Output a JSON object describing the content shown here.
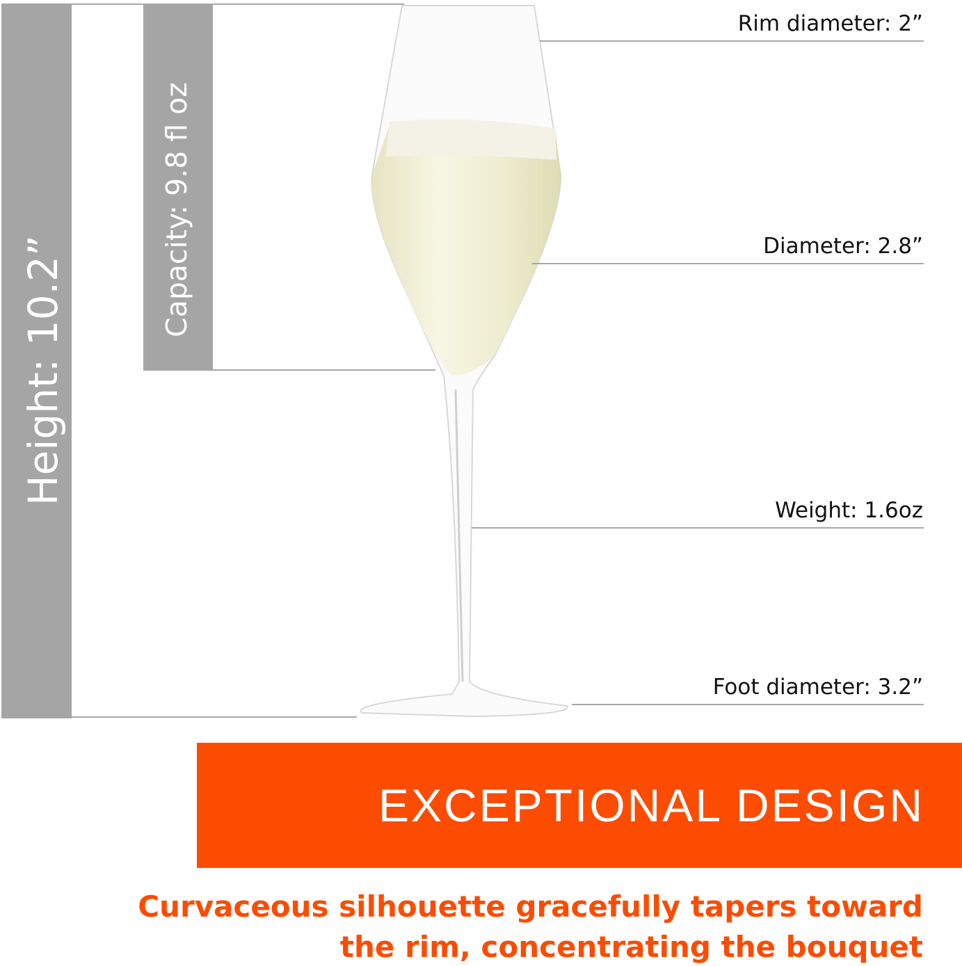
{
  "dimensions": {
    "height": "Height: 10.2”",
    "capacity": "Capacity: 9.8 fl oz",
    "rim_diameter": "Rim diameter: 2”",
    "diameter": "Diameter: 2.8”",
    "weight": "Weight: 1.6oz",
    "foot_diameter": "Foot diameter: 3.2”"
  },
  "banner": {
    "title": "EXCEPTIONAL DESIGN"
  },
  "tagline": {
    "line1": "Curvaceous silhouette gracefully tapers toward",
    "line2": "the rim, concentrating the bouquet"
  },
  "colors": {
    "accent": "#fc4c02",
    "bar_gray": "#a5a5a5"
  }
}
